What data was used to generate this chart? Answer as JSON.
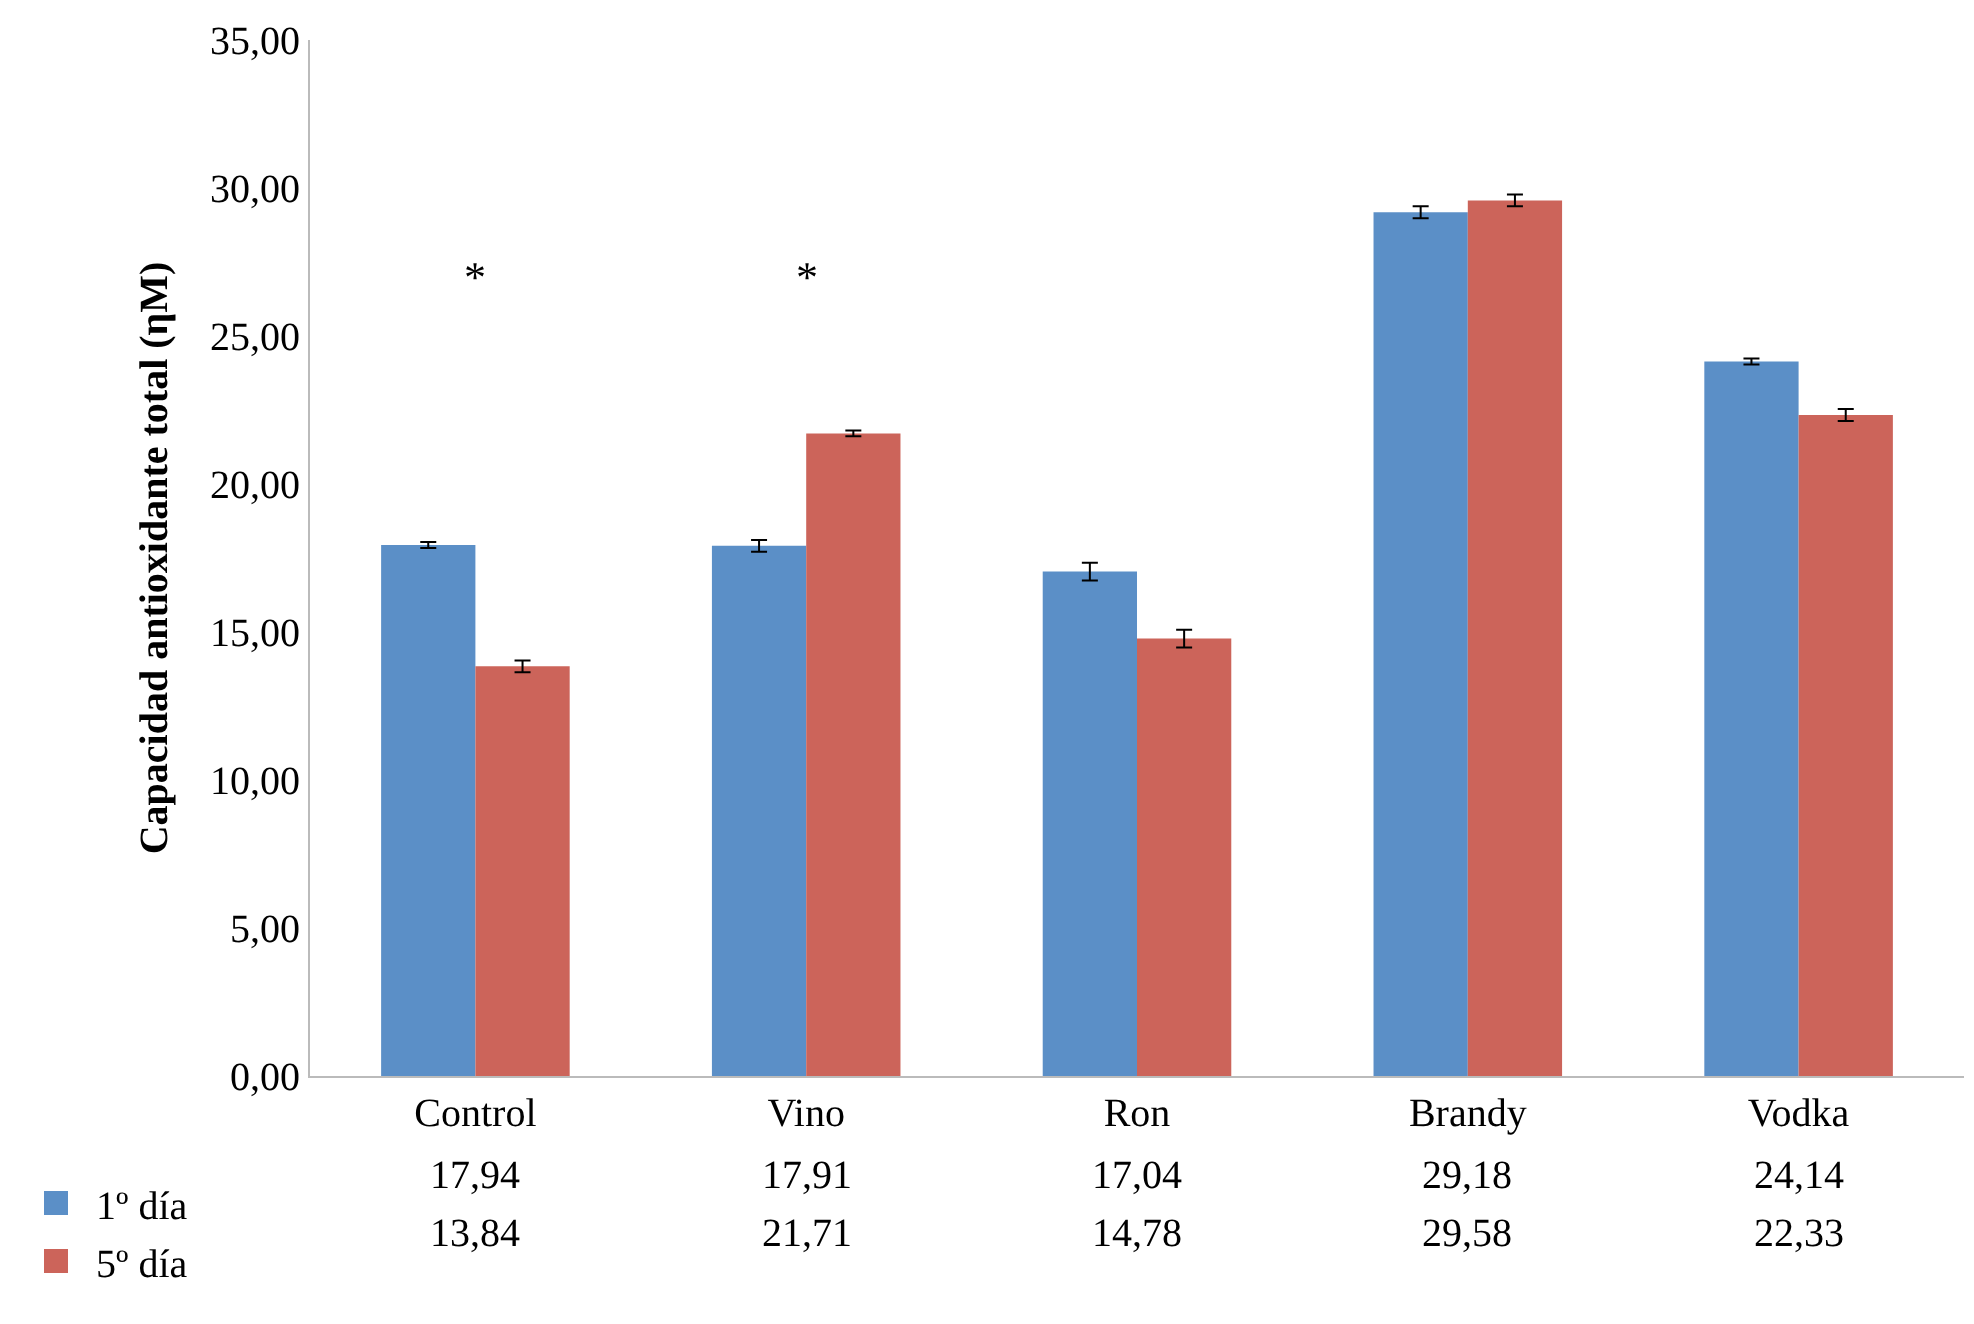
{
  "chart_data": {
    "type": "bar",
    "ylabel": "Capacidad antioxidante total (ηM)",
    "categories": [
      "Control",
      "Vino",
      "Ron",
      "Brandy",
      "Vodka"
    ],
    "series": [
      {
        "name": "1º día",
        "color": "#5b8fc7",
        "values": [
          17.94,
          17.91,
          17.04,
          29.18,
          24.14
        ],
        "errors": [
          0.1,
          0.2,
          0.3,
          0.2,
          0.1
        ]
      },
      {
        "name": "5º día",
        "color": "#cc645a",
        "values": [
          13.84,
          21.71,
          14.78,
          29.58,
          22.33
        ],
        "errors": [
          0.2,
          0.1,
          0.3,
          0.2,
          0.2
        ]
      }
    ],
    "ylim": [
      0,
      35
    ],
    "yticks": [
      {
        "value": 0,
        "label": "0,00"
      },
      {
        "value": 5,
        "label": "5,00"
      },
      {
        "value": 10,
        "label": "10,00"
      },
      {
        "value": 15,
        "label": "15,00"
      },
      {
        "value": 20,
        "label": "20,00"
      },
      {
        "value": 25,
        "label": "25,00"
      },
      {
        "value": 30,
        "label": "30,00"
      },
      {
        "value": 35,
        "label": "35,00"
      }
    ],
    "value_labels": [
      [
        "17,94",
        "17,91",
        "17,04",
        "29,18",
        "24,14"
      ],
      [
        "13,84",
        "21,71",
        "14,78",
        "29,58",
        "22,33"
      ]
    ],
    "annotations": [
      "*",
      "*"
    ],
    "legend": "bottom left"
  }
}
